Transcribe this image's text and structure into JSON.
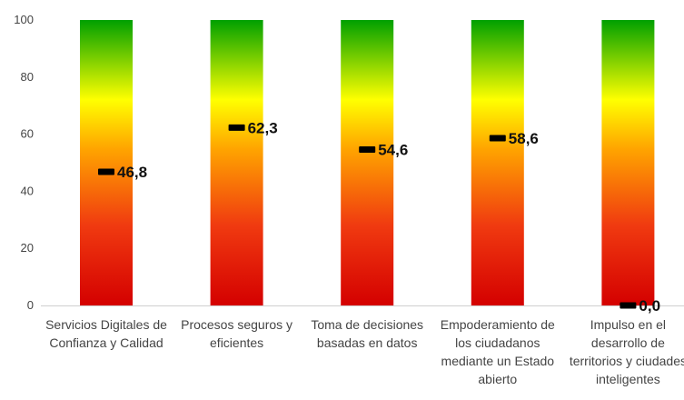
{
  "chart_data": {
    "type": "bar",
    "title": "",
    "xlabel": "",
    "ylabel": "",
    "ylim": [
      0,
      100
    ],
    "yticks": [
      0,
      20,
      40,
      60,
      80,
      100
    ],
    "grid": false,
    "categories": [
      [
        "Servicios Digitales de",
        "Confianza y Calidad"
      ],
      [
        "Procesos seguros y",
        "eficientes"
      ],
      [
        "Toma de decisiones",
        "basadas en datos"
      ],
      [
        "Empoderamiento de",
        "los ciudadanos",
        "mediante un Estado",
        "abierto"
      ],
      [
        "Impulso en el",
        "desarrollo de",
        "territorios y ciudades",
        "inteligentes"
      ]
    ],
    "values": [
      46.8,
      62.3,
      54.6,
      58.6,
      0.0
    ],
    "value_labels": [
      "46,8",
      "62,3",
      "54,6",
      "58,6",
      "0,0"
    ],
    "bar_gradient": {
      "bottom": "#d40000",
      "low_mid": "#f03a10",
      "mid": "#ffa500",
      "upper_mid": "#ffff00",
      "top": "#00a000"
    },
    "marker_color": "#000000"
  }
}
